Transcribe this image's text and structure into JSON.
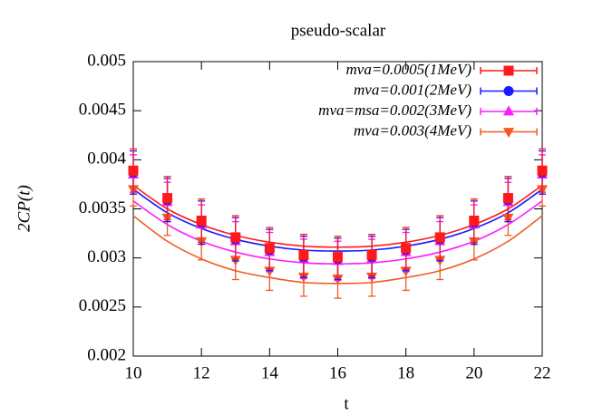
{
  "chart_data": {
    "type": "scatter",
    "title": "pseudo-scalar",
    "x_label": "t",
    "y_label": "2CP(t)",
    "x": [
      10,
      11,
      12,
      13,
      14,
      15,
      16,
      17,
      18,
      19,
      20,
      21,
      22
    ],
    "xlim": [
      10,
      22
    ],
    "xticks": [
      10,
      12,
      14,
      16,
      18,
      20,
      22
    ],
    "ylim": [
      0.002,
      0.005
    ],
    "yticks": [
      0.002,
      0.0025,
      0.003,
      0.0035,
      0.004,
      0.0045,
      0.005
    ],
    "legend": "top-right",
    "series": [
      {
        "name": "mνa=0.0005(1MeV)",
        "color": "#ff1a1a",
        "marker": "square",
        "values": [
          0.00389,
          0.00361,
          0.00338,
          0.00321,
          0.0031,
          0.00303,
          0.00301,
          0.00303,
          0.0031,
          0.00321,
          0.00338,
          0.00361,
          0.00389
        ],
        "errors": [
          0.00022,
          0.00022,
          0.00022,
          0.00022,
          0.00021,
          0.00021,
          0.00021,
          0.00021,
          0.00021,
          0.00022,
          0.00022,
          0.00022,
          0.00022
        ],
        "fit_values": [
          0.00374,
          0.0035,
          0.00334,
          0.00323,
          0.00316,
          0.00312,
          0.00311,
          0.00312,
          0.00316,
          0.00323,
          0.00334,
          0.0035,
          0.00374
        ]
      },
      {
        "name": "mνa=0.001(2MeV)",
        "color": "#1a1aff",
        "marker": "circle",
        "values": [
          0.00387,
          0.00359,
          0.00336,
          0.00319,
          0.00308,
          0.00301,
          0.00299,
          0.00301,
          0.00308,
          0.00319,
          0.00336,
          0.00359,
          0.00387
        ],
        "errors": [
          0.00022,
          0.00022,
          0.00022,
          0.00022,
          0.00021,
          0.00021,
          0.00021,
          0.00021,
          0.00021,
          0.00022,
          0.00022,
          0.00022,
          0.00022
        ],
        "fit_values": [
          0.0037,
          0.00346,
          0.0033,
          0.00319,
          0.00312,
          0.00308,
          0.00307,
          0.00308,
          0.00312,
          0.00319,
          0.0033,
          0.00346,
          0.0037
        ]
      },
      {
        "name": "mνa=msa=0.002(3MeV)",
        "color": "#ff1aff",
        "marker": "triangle",
        "values": [
          0.00385,
          0.00357,
          0.00334,
          0.00317,
          0.00306,
          0.00299,
          0.00297,
          0.00299,
          0.00306,
          0.00317,
          0.00334,
          0.00357,
          0.00385
        ],
        "errors": [
          0.0002,
          0.0002,
          0.0002,
          0.0002,
          0.0002,
          0.0002,
          0.0002,
          0.0002,
          0.0002,
          0.0002,
          0.0002,
          0.0002,
          0.0002
        ],
        "fit_values": [
          0.00358,
          0.00334,
          0.00317,
          0.00306,
          0.00299,
          0.00295,
          0.00294,
          0.00295,
          0.00299,
          0.00306,
          0.00317,
          0.00334,
          0.00358
        ]
      },
      {
        "name": "mνa=0.003(4MeV)",
        "color": "#f05a22",
        "marker": "triangle-down",
        "values": [
          0.0037,
          0.00341,
          0.00317,
          0.00298,
          0.00287,
          0.00281,
          0.00279,
          0.00281,
          0.00287,
          0.00298,
          0.00317,
          0.00341,
          0.0037
        ],
        "errors": [
          0.00017,
          0.00018,
          0.00019,
          0.0002,
          0.0002,
          0.0002,
          0.0002,
          0.0002,
          0.0002,
          0.0002,
          0.00019,
          0.00018,
          0.00017
        ],
        "fit_values": [
          0.00343,
          0.00317,
          0.00299,
          0.00287,
          0.0028,
          0.00275,
          0.00274,
          0.00275,
          0.0028,
          0.00287,
          0.00299,
          0.00317,
          0.00343
        ]
      }
    ]
  }
}
